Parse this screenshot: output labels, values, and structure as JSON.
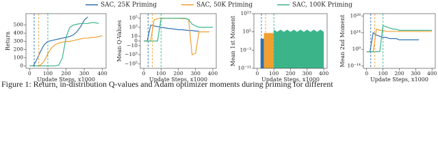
{
  "caption": "Figure 1: Return, in-distribution Q-values and Adam optimizer moments during priming for different",
  "chart_data": [
    {
      "type": "line",
      "scale": "linear",
      "ylabel": "Return",
      "xlabel": "Update Steps, x1000",
      "x": [
        0,
        20,
        40,
        60,
        80,
        100,
        120,
        140,
        160,
        180,
        200,
        220,
        240,
        260,
        280,
        300,
        320,
        340,
        360,
        380,
        400
      ],
      "xlim": [
        -20,
        420
      ],
      "xticks": [
        0,
        100,
        200,
        300,
        400
      ],
      "ylim": [
        -30,
        640
      ],
      "yticks": [
        0,
        100,
        200,
        300,
        400,
        500
      ],
      "vlines": [
        25,
        50,
        100
      ],
      "series": [
        {
          "name": "SAC, 25K Priming",
          "color": "#2e6fb0",
          "values": [
            0,
            0,
            80,
            180,
            260,
            300,
            310,
            320,
            330,
            340,
            350,
            360,
            380,
            420,
            480,
            560,
            600,
            null,
            null,
            null,
            null
          ]
        },
        {
          "name": "SAC, 50K Priming",
          "color": "#f0a030",
          "values": [
            0,
            0,
            0,
            10,
            60,
            150,
            220,
            260,
            280,
            290,
            300,
            300,
            310,
            320,
            330,
            340,
            340,
            350,
            350,
            360,
            370
          ]
        },
        {
          "name": "SAC, 100K Priming",
          "color": "#3cb48a",
          "values": [
            0,
            0,
            0,
            0,
            0,
            0,
            0,
            0,
            10,
            100,
            350,
            470,
            500,
            510,
            520,
            520,
            520,
            530,
            530,
            520,
            null
          ]
        }
      ]
    },
    {
      "type": "line",
      "scale": "symlog",
      "ylabel": "Mean Q-Values",
      "xlabel": "Update Steps, x1000",
      "x": [
        0,
        20,
        40,
        60,
        80,
        100,
        120,
        140,
        160,
        180,
        200,
        220,
        240,
        260,
        280,
        300,
        320,
        340,
        360,
        380,
        400
      ],
      "xlim": [
        -20,
        420
      ],
      "xticks": [
        0,
        100,
        200,
        300,
        400
      ],
      "ylim": [
        -1000000,
        1000000
      ],
      "yticks": [
        {
          "value": -100000,
          "label": "−10⁵"
        },
        {
          "value": -1000,
          "label": "−10³"
        },
        {
          "value": -10,
          "label": "−10"
        },
        0,
        10,
        {
          "value": 1000,
          "label": "10³"
        },
        {
          "value": 100000,
          "label": "10⁵"
        }
      ],
      "vlines": [
        25,
        50,
        100
      ],
      "series": [
        {
          "color": "#2e6fb0",
          "values": [
            0,
            0,
            3000,
            2000,
            1500,
            1000,
            800,
            600,
            500,
            400,
            300,
            300,
            250,
            200,
            200,
            150,
            150,
            null,
            null,
            null,
            null
          ]
        },
        {
          "color": "#f0a030",
          "values": [
            0,
            0,
            0,
            50000,
            80000,
            100000,
            100000,
            100000,
            100000,
            100000,
            100000,
            80000,
            80000,
            50000,
            -1000,
            -500,
            100,
            100,
            100,
            100,
            null
          ]
        },
        {
          "color": "#3cb48a",
          "values": [
            0,
            0,
            0,
            0,
            0,
            80000,
            100000,
            100000,
            100000,
            100000,
            100000,
            100000,
            100000,
            50000,
            5000,
            2000,
            1000,
            1000,
            1000,
            1000,
            1000
          ]
        }
      ]
    },
    {
      "type": "area",
      "scale": "log",
      "ylabel": "Mean 1st Moment",
      "xlabel": "Update Steps, x1000",
      "x": [
        0,
        20,
        40,
        60,
        80,
        100,
        120,
        140,
        160,
        180,
        200,
        220,
        240,
        260,
        280,
        300,
        320,
        340,
        360,
        380,
        400
      ],
      "xlim": [
        -20,
        420
      ],
      "xticks": [
        0,
        100,
        200,
        300,
        400
      ],
      "ylim": [
        1e-11,
        10000000000000.0
      ],
      "yticks": [
        {
          "value": 1e-11,
          "label": "10⁻¹¹"
        },
        {
          "value": 0.001,
          "label": "10⁻³"
        },
        {
          "value": 100000,
          "label": "10⁵"
        },
        {
          "value": 10000000000000.0,
          "label": "10¹³"
        }
      ],
      "vlines": [
        25,
        50,
        100
      ],
      "series": [
        {
          "color": "#2e6fb0",
          "values": [
            null,
            100,
            100,
            null,
            null,
            null,
            null,
            null,
            null,
            null,
            null,
            null,
            null,
            null,
            null,
            null,
            null,
            null,
            null,
            null,
            null
          ]
        },
        {
          "color": "#f0a030",
          "values": [
            null,
            null,
            30000,
            30000,
            30000,
            30000,
            null,
            null,
            null,
            null,
            null,
            null,
            null,
            null,
            null,
            null,
            null,
            null,
            null,
            null,
            null
          ]
        },
        {
          "color": "#3cb48a",
          "values": [
            null,
            null,
            null,
            null,
            null,
            1000000,
            100000,
            1000000,
            100000,
            1000000,
            100000,
            1000000,
            100000,
            1000000,
            100000,
            1000000,
            100000,
            1000000,
            100000,
            1000000,
            100000
          ]
        }
      ]
    },
    {
      "type": "line",
      "scale": "log",
      "ylabel": "Mean 2nd Moment",
      "xlabel": "Update Steps, x1000",
      "x": [
        0,
        20,
        40,
        60,
        80,
        100,
        120,
        140,
        160,
        180,
        200,
        220,
        240,
        260,
        280,
        300,
        320,
        340,
        360,
        380,
        400
      ],
      "xlim": [
        -20,
        420
      ],
      "xticks": [
        0,
        100,
        200,
        300,
        400
      ],
      "ylim": [
        1e-16,
        1e+30
      ],
      "yticks": [
        {
          "value": 1e-14,
          "label": "10⁻¹⁴"
        },
        {
          "value": 1,
          "label": "10⁰"
        },
        {
          "value": 100000000000000.0,
          "label": "10¹⁴"
        },
        {
          "value": 1e+28,
          "label": "10²⁸"
        }
      ],
      "vlines": [
        25,
        50,
        100
      ],
      "series": [
        {
          "color": "#2e6fb0",
          "values": [
            0.01,
            0.01,
            100000000000000.0,
            1000000000000.0,
            100000000000.0,
            10000000000.0,
            10000000000.0,
            1000000000.0,
            1000000000.0,
            1000000000.0,
            100000000.0,
            100000000.0,
            100000000.0,
            100000000.0,
            100000000.0,
            100000000.0,
            100000000.0,
            null,
            null,
            null,
            null
          ]
        },
        {
          "color": "#f0a030",
          "values": [
            0.01,
            0.01,
            0.01,
            1e+17,
            1e+16,
            1e+16,
            1000000000000000.0,
            1000000000000000.0,
            1000000000000000.0,
            1000000000000000.0,
            1000000000000000.0,
            1000000000000000.0,
            1000000000000000.0,
            1000000000000000.0,
            1000000000000000.0,
            1000000000000000.0,
            1000000000000000.0,
            1000000000000000.0,
            1000000000000000.0,
            1000000000000000.0,
            1000000000000000.0
          ]
        },
        {
          "color": "#3cb48a",
          "values": [
            0.01,
            0.01,
            0.01,
            0.01,
            0.01,
            1e+20,
            1e+19,
            1e+18,
            1e+17,
            1e+17,
            1e+16,
            1e+16,
            1e+16,
            1e+16,
            1e+16,
            1e+16,
            1e+16,
            1e+16,
            1e+16,
            1e+16,
            1e+16
          ]
        }
      ]
    }
  ]
}
